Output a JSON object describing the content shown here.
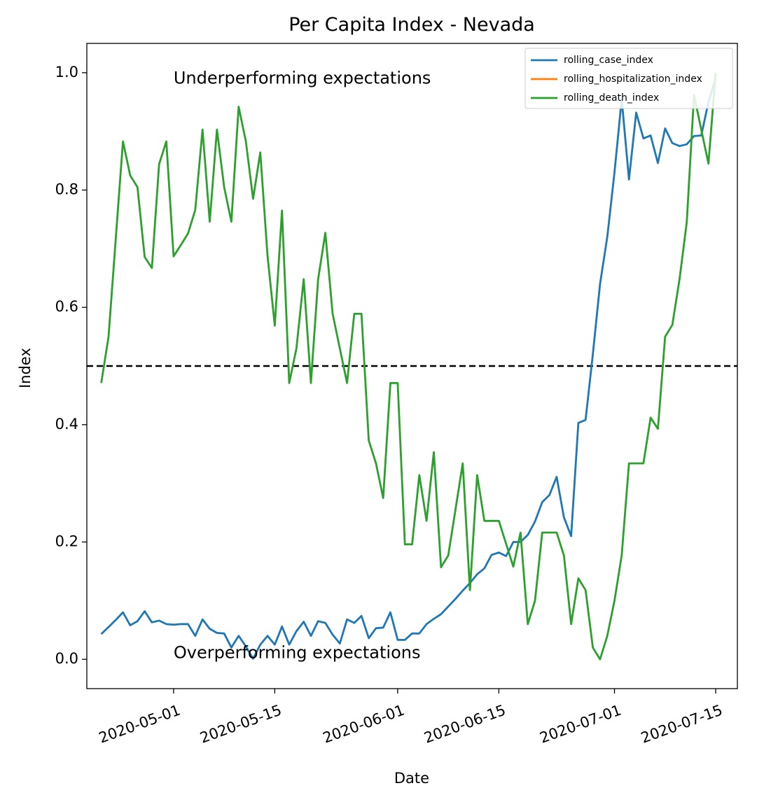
{
  "chart_data": {
    "type": "line",
    "title": "Per Capita Index - Nevada",
    "xlabel": "Date",
    "ylabel": "Index",
    "x_start": "2020-04-21",
    "xlim": [
      "2020-04-19",
      "2020-07-18"
    ],
    "ylim": [
      -0.05,
      1.05
    ],
    "yticks": [
      0.0,
      0.2,
      0.4,
      0.6,
      0.8,
      1.0
    ],
    "ytick_labels": [
      "0.0",
      "0.2",
      "0.4",
      "0.6",
      "0.8",
      "1.0"
    ],
    "xticks": [
      "2020-05-01",
      "2020-05-15",
      "2020-06-01",
      "2020-06-15",
      "2020-07-01",
      "2020-07-15"
    ],
    "reference_line": {
      "y": 0.5,
      "style": "dashed",
      "color": "#000000"
    },
    "annotations": [
      {
        "text": "Underperforming expectations",
        "x": "2020-05-01",
        "y": 0.99
      },
      {
        "text": "Overperforming expectations",
        "x": "2020-05-01",
        "y": 0.01
      }
    ],
    "legend": {
      "position": "top-right"
    },
    "series": [
      {
        "name": "rolling_case_index",
        "color": "#1f77b4",
        "values": [
          0.043,
          0.055,
          0.067,
          0.08,
          0.058,
          0.065,
          0.082,
          0.063,
          0.066,
          0.06,
          0.059,
          0.06,
          0.06,
          0.04,
          0.068,
          0.052,
          0.045,
          0.044,
          0.02,
          0.04,
          0.022,
          0.001,
          0.025,
          0.04,
          0.025,
          0.056,
          0.025,
          0.048,
          0.064,
          0.04,
          0.065,
          0.062,
          0.042,
          0.027,
          0.068,
          0.062,
          0.074,
          0.036,
          0.053,
          0.054,
          0.08,
          0.033,
          0.033,
          0.044,
          0.044,
          0.06,
          0.069,
          0.077,
          0.09,
          0.103,
          0.117,
          0.13,
          0.145,
          0.155,
          0.178,
          0.182,
          0.176,
          0.2,
          0.2,
          0.212,
          0.235,
          0.268,
          0.28,
          0.311,
          0.242,
          0.21,
          0.403,
          0.408,
          0.52,
          0.64,
          0.72,
          0.83,
          0.955,
          0.818,
          0.932,
          0.888,
          0.893,
          0.846,
          0.905,
          0.88,
          0.875,
          0.878,
          0.892,
          0.893,
          0.95,
          0.99
        ]
      },
      {
        "name": "rolling_hospitalization_index",
        "color": "#ff7f0e",
        "values": []
      },
      {
        "name": "rolling_death_index",
        "color": "#2ca02c",
        "values": [
          0.471,
          0.55,
          0.717,
          0.883,
          0.825,
          0.805,
          0.686,
          0.667,
          0.844,
          0.883,
          0.687,
          0.706,
          0.726,
          0.766,
          0.903,
          0.746,
          0.903,
          0.805,
          0.746,
          0.942,
          0.883,
          0.785,
          0.864,
          0.687,
          0.569,
          0.765,
          0.471,
          0.53,
          0.648,
          0.471,
          0.648,
          0.727,
          0.589,
          0.53,
          0.471,
          0.589,
          0.589,
          0.373,
          0.334,
          0.275,
          0.471,
          0.471,
          0.196,
          0.196,
          0.314,
          0.236,
          0.353,
          0.157,
          0.177,
          0.255,
          0.334,
          0.118,
          0.314,
          0.236,
          0.236,
          0.236,
          0.197,
          0.158,
          0.216,
          0.06,
          0.1,
          0.216,
          0.216,
          0.216,
          0.177,
          0.06,
          0.138,
          0.118,
          0.02,
          0.0,
          0.04,
          0.1,
          0.177,
          0.334,
          0.334,
          0.334,
          0.412,
          0.393,
          0.55,
          0.57,
          0.648,
          0.745,
          0.962,
          0.903,
          0.845,
          1.0
        ]
      }
    ]
  }
}
